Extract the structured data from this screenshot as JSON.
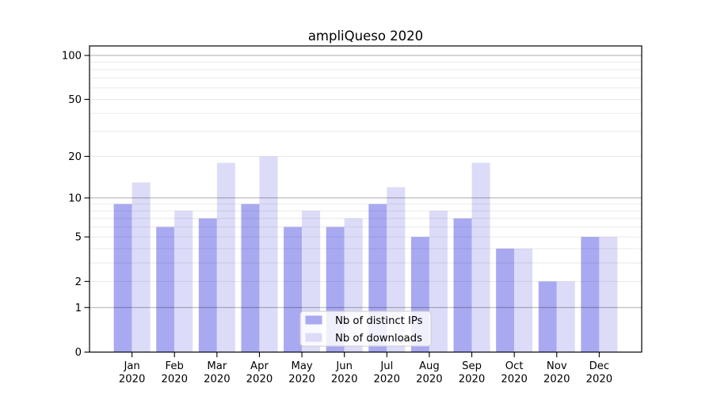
{
  "chart_data": {
    "type": "bar",
    "title": "ampliQueso 2020",
    "categories": [
      {
        "month": "Jan",
        "year": "2020"
      },
      {
        "month": "Feb",
        "year": "2020"
      },
      {
        "month": "Mar",
        "year": "2020"
      },
      {
        "month": "Apr",
        "year": "2020"
      },
      {
        "month": "May",
        "year": "2020"
      },
      {
        "month": "Jun",
        "year": "2020"
      },
      {
        "month": "Jul",
        "year": "2020"
      },
      {
        "month": "Aug",
        "year": "2020"
      },
      {
        "month": "Sep",
        "year": "2020"
      },
      {
        "month": "Oct",
        "year": "2020"
      },
      {
        "month": "Nov",
        "year": "2020"
      },
      {
        "month": "Dec",
        "year": "2020"
      }
    ],
    "series": [
      {
        "name": "Nb of distinct IPs",
        "color": "#a9a9f2",
        "values": [
          9,
          6,
          7,
          9,
          6,
          6,
          9,
          5,
          7,
          4,
          2,
          5
        ]
      },
      {
        "name": "Nb of downloads",
        "color": "#dcdcf9",
        "values": [
          13,
          8,
          18,
          20,
          8,
          7,
          12,
          8,
          18,
          4,
          2,
          5
        ]
      }
    ],
    "y_scale": "log1p",
    "y_ticks": [
      0,
      1,
      2,
      5,
      10,
      20,
      50,
      100
    ],
    "ylim": [
      0,
      116
    ],
    "grid": {
      "major_at": [
        1,
        10,
        100
      ],
      "minor_at": [
        2,
        3,
        4,
        5,
        6,
        7,
        8,
        9,
        20,
        30,
        40,
        50,
        60,
        70,
        80,
        90
      ]
    },
    "legend": {
      "position": "lower center"
    }
  }
}
